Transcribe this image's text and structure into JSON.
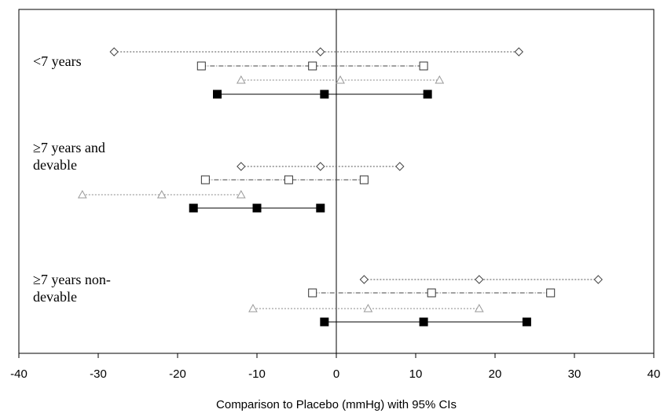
{
  "chart_data": {
    "type": "forest",
    "xlabel": "Comparison to Placebo (mmHg) with 95% CIs",
    "ylabel": "",
    "title": "",
    "xlim": [
      -40,
      40
    ],
    "xticks": [
      "-40",
      "-30",
      "-20",
      "-10",
      "0",
      "10",
      "20",
      "30",
      "40"
    ],
    "grid": false,
    "legend": "none",
    "groups": [
      {
        "label_lines": [
          "<7 years"
        ],
        "rows": [
          {
            "marker": "diamond-open",
            "line": "dotted",
            "color": "#555555",
            "lower": -28,
            "estimate": -2,
            "upper": 23
          },
          {
            "marker": "square-open",
            "line": "solid-gray",
            "color": "#444444",
            "lower": -17,
            "estimate": -3,
            "upper": 11
          },
          {
            "marker": "triangle-open",
            "line": "dotted-light",
            "color": "#888888",
            "lower": -12,
            "estimate": 0.5,
            "upper": 13
          },
          {
            "marker": "square-filled",
            "line": "solid",
            "color": "#000000",
            "lower": -15,
            "estimate": -1.5,
            "upper": 11.5
          }
        ]
      },
      {
        "label_lines": [
          "≥7 years and",
          "devable"
        ],
        "rows": [
          {
            "marker": "diamond-open",
            "line": "dotted",
            "color": "#555555",
            "lower": -12,
            "estimate": -2,
            "upper": 8
          },
          {
            "marker": "square-open",
            "line": "solid-gray",
            "color": "#444444",
            "lower": -16.5,
            "estimate": -6,
            "upper": 3.5
          },
          {
            "marker": "triangle-open",
            "line": "dotted-light",
            "color": "#888888",
            "lower": -32,
            "estimate": -22,
            "upper": -12
          },
          {
            "marker": "square-filled",
            "line": "solid",
            "color": "#000000",
            "lower": -18,
            "estimate": -10,
            "upper": -2
          }
        ]
      },
      {
        "label_lines": [
          "≥7 years non-",
          "devable"
        ],
        "rows": [
          {
            "marker": "diamond-open",
            "line": "dotted",
            "color": "#555555",
            "lower": 3.5,
            "estimate": 18,
            "upper": 33
          },
          {
            "marker": "square-open",
            "line": "solid-gray",
            "color": "#444444",
            "lower": -3,
            "estimate": 12,
            "upper": 27
          },
          {
            "marker": "triangle-open",
            "line": "dotted-light",
            "color": "#888888",
            "lower": -10.5,
            "estimate": 4,
            "upper": 18
          },
          {
            "marker": "square-filled",
            "line": "solid",
            "color": "#000000",
            "lower": -1.5,
            "estimate": 11,
            "upper": 24
          }
        ]
      }
    ]
  }
}
